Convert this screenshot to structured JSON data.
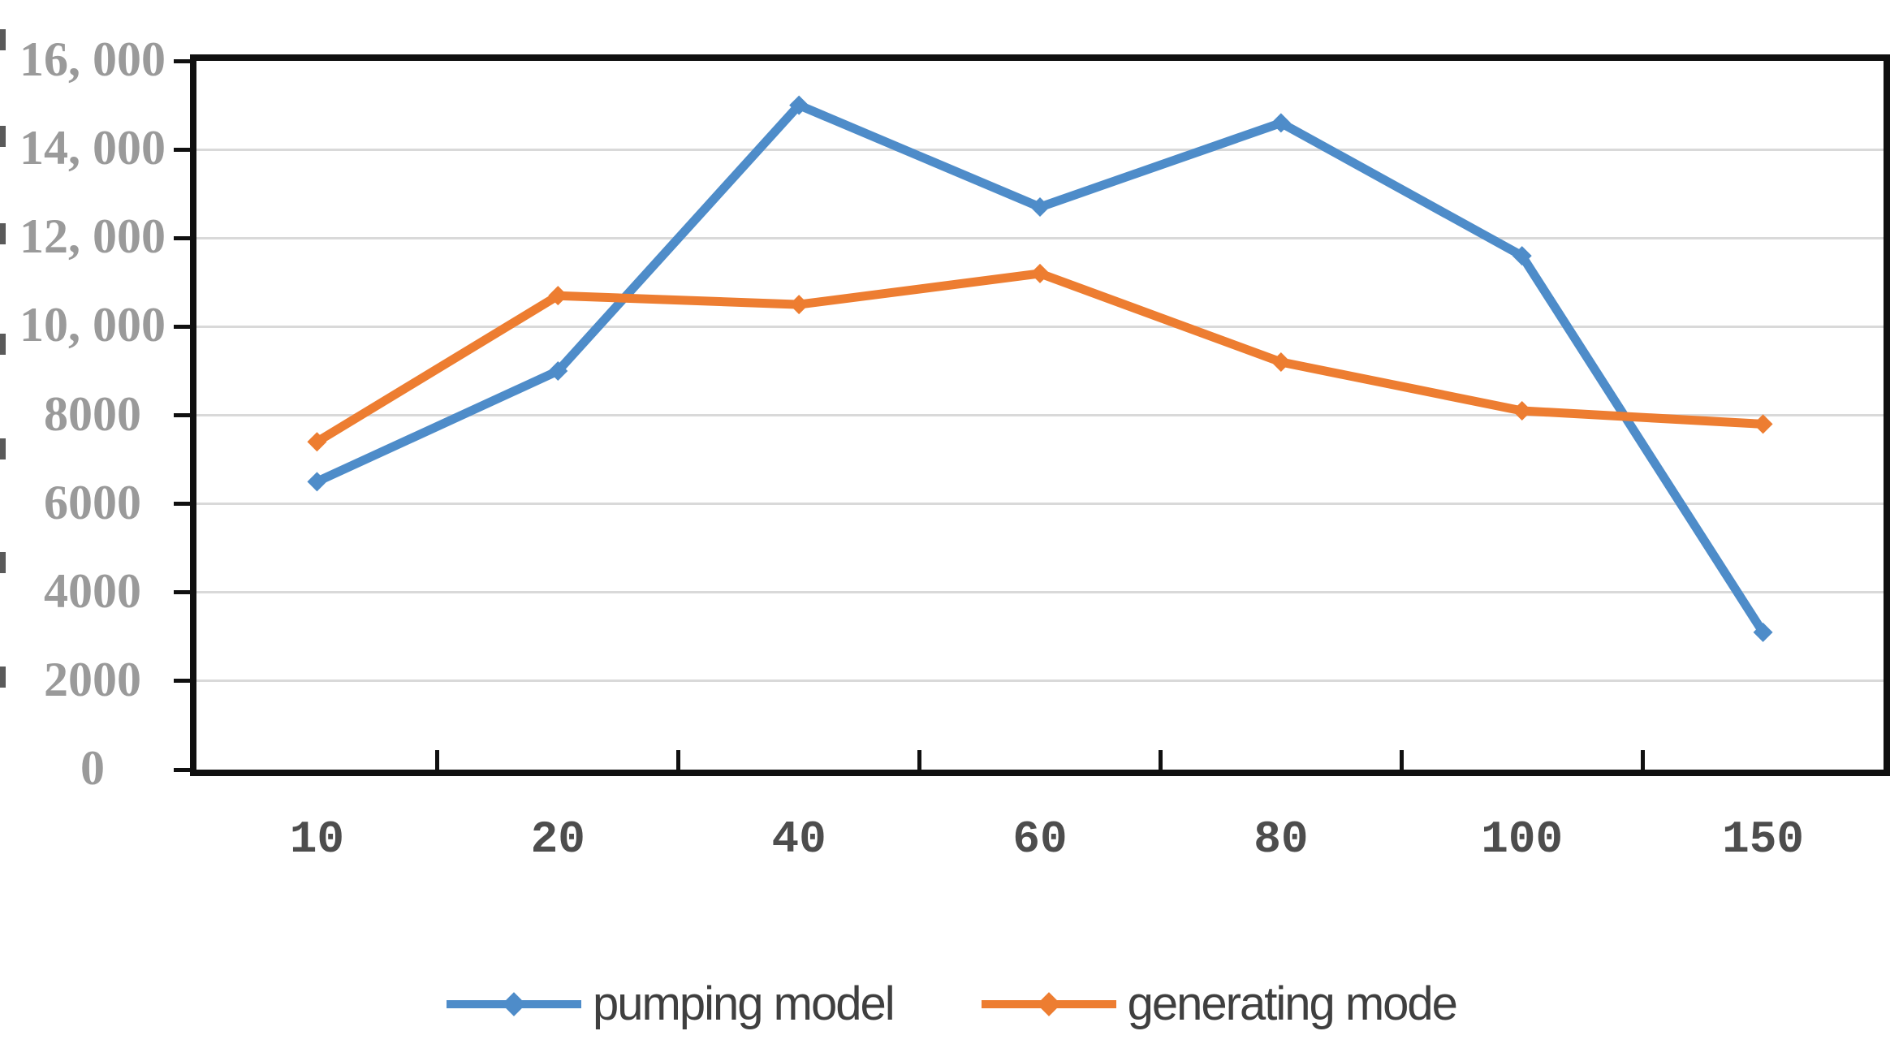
{
  "chart_data": {
    "type": "line",
    "title": "",
    "xlabel": "",
    "ylabel": "",
    "categories": [
      "10",
      "20",
      "40",
      "60",
      "80",
      "100",
      "150"
    ],
    "series": [
      {
        "name": "pumping model",
        "color": "#4E8CC9",
        "marker": "diamond",
        "values": [
          6500,
          9000,
          15000,
          12700,
          14600,
          11600,
          3100
        ]
      },
      {
        "name": "generating mode",
        "color": "#ED7D31",
        "marker": "diamond",
        "values": [
          7400,
          10700,
          10500,
          11200,
          9200,
          8100,
          7800
        ]
      }
    ],
    "ylim": [
      0,
      16000
    ],
    "y_tick_step": 2000,
    "y_tick_labels_bottom_up": [
      "0",
      "2000",
      "4000",
      "6000",
      "8000",
      "10, 000",
      "12, 000",
      "14, 000",
      "16, 000"
    ],
    "grid": "horizontal",
    "legend_position": "bottom",
    "axis_color": "#101010",
    "gridline_color": "#D9D9D9",
    "y_label_color": "#9A9A9A",
    "x_label_color": "#4D4D4D",
    "legend_text_color": "#3F3F3F"
  }
}
